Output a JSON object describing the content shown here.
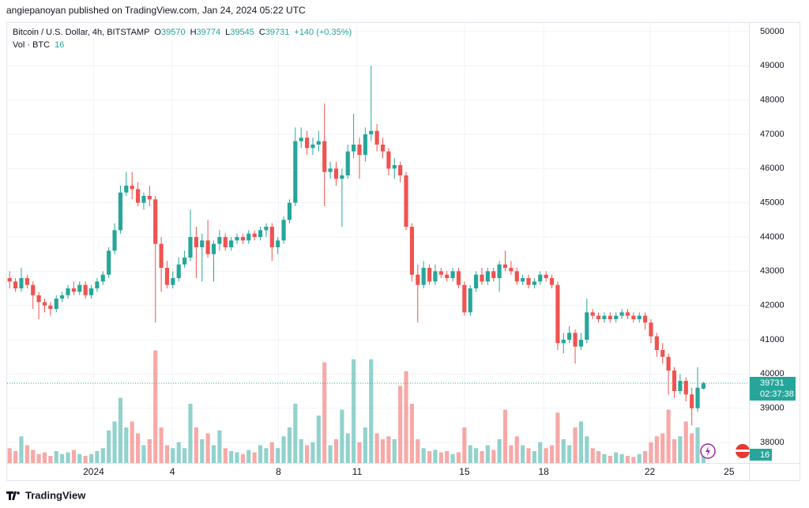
{
  "header": {
    "text": "angiepanoyan published on TradingView.com, Jan 24, 2024 05:22 UTC"
  },
  "footer": {
    "brand": "TradingView"
  },
  "chart_data": {
    "type": "candlestick",
    "symbol": "Bitcoin / U.S. Dollar, 4h, BITSTAMP",
    "ohlc_letters": [
      "O",
      "H",
      "L",
      "C"
    ],
    "change_label": "+140 (+0.35%)",
    "volume_label": "Vol · BTC",
    "countdown": "02:37:38",
    "up_color": "#26a69a",
    "down_color": "#ef5350",
    "ylim": [
      37500,
      50500
    ],
    "yticks": [
      38000,
      39000,
      40000,
      41000,
      42000,
      43000,
      44000,
      45000,
      46000,
      47000,
      48000,
      49000,
      50000
    ],
    "xlim": [
      -0.3,
      126.4
    ],
    "xticks": [
      {
        "value": 14.4,
        "label": "2024"
      },
      {
        "value": 27.9,
        "label": "4"
      },
      {
        "value": 46.1,
        "label": "8"
      },
      {
        "value": 59.6,
        "label": "11"
      },
      {
        "value": 78.0,
        "label": "15"
      },
      {
        "value": 91.6,
        "label": "18"
      },
      {
        "value": 109.8,
        "label": "22"
      },
      {
        "value": 123.4,
        "label": "25"
      }
    ],
    "vlim": [
      0,
      200
    ],
    "grid": true,
    "candles": [
      [
        42800,
        43000,
        42500,
        42700,
        25
      ],
      [
        42700,
        42800,
        42400,
        42500,
        20
      ],
      [
        42500,
        43100,
        42400,
        42800,
        45
      ],
      [
        42800,
        42900,
        42500,
        42600,
        30
      ],
      [
        42600,
        42700,
        41900,
        42300,
        22
      ],
      [
        42300,
        42400,
        41600,
        42100,
        15
      ],
      [
        42100,
        42200,
        41800,
        42000,
        18
      ],
      [
        42000,
        42100,
        41700,
        41900,
        12
      ],
      [
        41900,
        42300,
        41800,
        42200,
        20
      ],
      [
        42200,
        42400,
        42100,
        42300,
        15
      ],
      [
        42300,
        42600,
        42200,
        42500,
        18
      ],
      [
        42500,
        42700,
        42300,
        42400,
        22
      ],
      [
        42400,
        42700,
        42300,
        42600,
        15
      ],
      [
        42600,
        42700,
        42200,
        42300,
        12
      ],
      [
        42300,
        42600,
        42200,
        42500,
        15
      ],
      [
        42500,
        42800,
        42400,
        42700,
        20
      ],
      [
        42700,
        43000,
        42600,
        42900,
        25
      ],
      [
        42900,
        43700,
        42800,
        43600,
        55
      ],
      [
        43600,
        44400,
        43500,
        44200,
        70
      ],
      [
        44200,
        45500,
        44100,
        45300,
        110
      ],
      [
        45300,
        45900,
        45200,
        45500,
        60
      ],
      [
        45500,
        45900,
        45100,
        45400,
        70
      ],
      [
        45400,
        45600,
        44900,
        45000,
        50
      ],
      [
        45000,
        45300,
        44800,
        45200,
        30
      ],
      [
        45200,
        45500,
        44900,
        45100,
        40
      ],
      [
        45100,
        45200,
        41500,
        43800,
        190
      ],
      [
        43800,
        44000,
        42400,
        43100,
        60
      ],
      [
        43100,
        43300,
        42500,
        42600,
        30
      ],
      [
        42600,
        43000,
        42500,
        42800,
        25
      ],
      [
        42800,
        43400,
        42700,
        43200,
        35
      ],
      [
        43200,
        43600,
        43100,
        43400,
        25
      ],
      [
        43400,
        44800,
        43300,
        44000,
        100
      ],
      [
        44000,
        44300,
        42800,
        43700,
        60
      ],
      [
        43700,
        44100,
        42700,
        43900,
        40
      ],
      [
        43900,
        44500,
        43400,
        43500,
        50
      ],
      [
        43500,
        43900,
        42700,
        43800,
        30
      ],
      [
        43800,
        44200,
        43600,
        44000,
        55
      ],
      [
        44000,
        44100,
        43600,
        43700,
        25
      ],
      [
        43700,
        44000,
        43600,
        43900,
        20
      ],
      [
        43900,
        44100,
        43800,
        44000,
        18
      ],
      [
        44000,
        44100,
        43800,
        43900,
        15
      ],
      [
        43900,
        44200,
        43800,
        44100,
        22
      ],
      [
        44100,
        44200,
        43900,
        44000,
        18
      ],
      [
        44000,
        44300,
        43900,
        44200,
        30
      ],
      [
        44200,
        44400,
        44000,
        44300,
        25
      ],
      [
        44300,
        44400,
        43300,
        43700,
        35
      ],
      [
        43700,
        44000,
        43500,
        43900,
        25
      ],
      [
        43900,
        44600,
        43800,
        44500,
        45
      ],
      [
        44500,
        45100,
        44400,
        45000,
        60
      ],
      [
        45000,
        47200,
        44900,
        46800,
        100
      ],
      [
        46800,
        47200,
        46600,
        46900,
        40
      ],
      [
        46900,
        47100,
        46400,
        46600,
        30
      ],
      [
        46600,
        46900,
        46400,
        46700,
        35
      ],
      [
        46700,
        47100,
        46500,
        46800,
        80
      ],
      [
        46800,
        47900,
        44900,
        45900,
        170
      ],
      [
        45900,
        46200,
        45700,
        46000,
        30
      ],
      [
        46000,
        46200,
        45500,
        45700,
        40
      ],
      [
        45700,
        46000,
        44300,
        45800,
        90
      ],
      [
        45800,
        46700,
        45700,
        46500,
        50
      ],
      [
        46500,
        47600,
        46300,
        46700,
        175
      ],
      [
        46700,
        46900,
        45700,
        46400,
        35
      ],
      [
        46400,
        47200,
        46200,
        47000,
        60
      ],
      [
        47000,
        49000,
        46800,
        47100,
        175
      ],
      [
        47100,
        47300,
        46500,
        46700,
        50
      ],
      [
        46700,
        46900,
        46300,
        46500,
        40
      ],
      [
        46500,
        46600,
        45800,
        46000,
        45
      ],
      [
        46000,
        46300,
        45700,
        46100,
        40
      ],
      [
        46100,
        46200,
        45600,
        45800,
        130
      ],
      [
        45800,
        45900,
        44200,
        44300,
        155
      ],
      [
        44300,
        44400,
        42700,
        42900,
        100
      ],
      [
        42900,
        43200,
        41500,
        42600,
        40
      ],
      [
        42600,
        43300,
        42500,
        43100,
        25
      ],
      [
        43100,
        43200,
        42600,
        42700,
        20
      ],
      [
        42700,
        43200,
        42600,
        43000,
        22
      ],
      [
        43000,
        43100,
        42800,
        42900,
        18
      ],
      [
        42900,
        43000,
        42700,
        42800,
        20
      ],
      [
        42800,
        43100,
        42700,
        43000,
        15
      ],
      [
        43000,
        43100,
        42500,
        42600,
        18
      ],
      [
        42600,
        42700,
        41700,
        41800,
        60
      ],
      [
        41800,
        42600,
        41700,
        42500,
        30
      ],
      [
        42500,
        43000,
        42400,
        42900,
        25
      ],
      [
        42900,
        43100,
        42600,
        42700,
        20
      ],
      [
        42700,
        43100,
        42600,
        43000,
        30
      ],
      [
        43000,
        43100,
        42700,
        42800,
        22
      ],
      [
        42800,
        43300,
        42400,
        43200,
        40
      ],
      [
        43200,
        43600,
        43000,
        43100,
        90
      ],
      [
        43100,
        43300,
        42900,
        43000,
        30
      ],
      [
        43000,
        43100,
        42600,
        42700,
        45
      ],
      [
        42700,
        42900,
        42600,
        42800,
        30
      ],
      [
        42800,
        42900,
        42500,
        42600,
        25
      ],
      [
        42600,
        42800,
        42500,
        42700,
        20
      ],
      [
        42700,
        43000,
        42600,
        42900,
        35
      ],
      [
        42900,
        43000,
        42700,
        42800,
        25
      ],
      [
        42800,
        42900,
        42500,
        42600,
        30
      ],
      [
        42600,
        42700,
        40700,
        40900,
        85
      ],
      [
        40900,
        41200,
        40600,
        41000,
        40
      ],
      [
        41000,
        41400,
        40900,
        41200,
        30
      ],
      [
        41200,
        41300,
        40300,
        40800,
        60
      ],
      [
        40800,
        41200,
        40700,
        41000,
        70
      ],
      [
        41000,
        42200,
        40900,
        41800,
        45
      ],
      [
        41800,
        41900,
        41600,
        41700,
        25
      ],
      [
        41700,
        41800,
        41500,
        41600,
        20
      ],
      [
        41600,
        41800,
        41500,
        41700,
        15
      ],
      [
        41700,
        41800,
        41500,
        41600,
        12
      ],
      [
        41600,
        41800,
        41500,
        41700,
        18
      ],
      [
        41700,
        41900,
        41600,
        41800,
        15
      ],
      [
        41800,
        41900,
        41600,
        41700,
        12
      ],
      [
        41700,
        41800,
        41500,
        41600,
        10
      ],
      [
        41600,
        41800,
        41500,
        41700,
        15
      ],
      [
        41700,
        41800,
        41300,
        41500,
        20
      ],
      [
        41500,
        41600,
        40900,
        41100,
        35
      ],
      [
        41100,
        41200,
        40500,
        40700,
        45
      ],
      [
        40700,
        40900,
        40300,
        40500,
        50
      ],
      [
        40500,
        40600,
        39400,
        40100,
        90
      ],
      [
        40100,
        40200,
        39300,
        39500,
        40
      ],
      [
        39500,
        40000,
        39400,
        39800,
        45
      ],
      [
        39800,
        39900,
        39200,
        39400,
        70
      ],
      [
        39400,
        39600,
        38500,
        39000,
        50
      ],
      [
        39000,
        40200,
        38900,
        39600,
        60
      ],
      [
        39570,
        39774,
        39545,
        39731,
        16
      ]
    ]
  }
}
